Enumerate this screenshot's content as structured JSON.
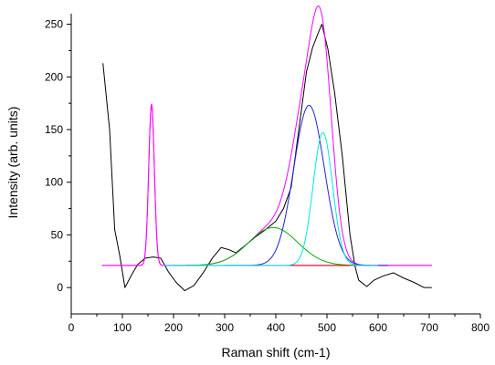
{
  "chart_data": {
    "type": "line",
    "title": "",
    "xlabel": "Raman shift (cm-1)",
    "ylabel": "Intensity (arb. units)",
    "xlim": [
      0,
      800
    ],
    "ylim": [
      -25,
      260
    ],
    "x_ticks": [
      0,
      100,
      200,
      300,
      400,
      500,
      600,
      700,
      800
    ],
    "y_ticks": [
      0,
      50,
      100,
      150,
      200,
      250
    ],
    "grid": false,
    "legend": "none",
    "baseline": 21,
    "series": [
      {
        "id": "measured",
        "color": "#000000",
        "points": [
          [
            62,
            213
          ],
          [
            75,
            150
          ],
          [
            85,
            55
          ],
          [
            95,
            30
          ],
          [
            105,
            0
          ],
          [
            118,
            12
          ],
          [
            130,
            22
          ],
          [
            145,
            28
          ],
          [
            160,
            29
          ],
          [
            175,
            28
          ],
          [
            190,
            15
          ],
          [
            205,
            5
          ],
          [
            222,
            -3
          ],
          [
            240,
            2
          ],
          [
            258,
            14
          ],
          [
            276,
            28
          ],
          [
            293,
            38
          ],
          [
            308,
            36
          ],
          [
            322,
            33
          ],
          [
            340,
            40
          ],
          [
            360,
            48
          ],
          [
            380,
            55
          ],
          [
            400,
            63
          ],
          [
            415,
            75
          ],
          [
            430,
            95
          ],
          [
            445,
            150
          ],
          [
            460,
            205
          ],
          [
            472,
            228
          ],
          [
            484,
            243
          ],
          [
            490,
            250
          ],
          [
            502,
            226
          ],
          [
            515,
            185
          ],
          [
            530,
            125
          ],
          [
            545,
            50
          ],
          [
            555,
            20
          ],
          [
            562,
            7
          ],
          [
            578,
            1
          ],
          [
            592,
            7
          ],
          [
            610,
            11
          ],
          [
            630,
            14
          ],
          [
            650,
            9
          ],
          [
            670,
            5
          ],
          [
            690,
            0
          ],
          [
            705,
            0
          ]
        ]
      },
      {
        "id": "fit-envelope",
        "color": "#ff00ff",
        "model": "gaussian-sum",
        "range": [
          60,
          705
        ]
      },
      {
        "id": "peak-157",
        "color": "#ff00ff",
        "model": "gaussian",
        "center": 157,
        "amplitude": 153,
        "sigma": 5.5,
        "range": [
          60,
          705
        ]
      },
      {
        "id": "peak-395",
        "color": "#00b400",
        "model": "gaussian",
        "center": 395,
        "amplitude": 36,
        "sigma": 48,
        "range": [
          200,
          560
        ]
      },
      {
        "id": "peak-465",
        "color": "#2222dd",
        "model": "gaussian",
        "center": 465,
        "amplitude": 152,
        "sigma": 30,
        "range": [
          300,
          620
        ]
      },
      {
        "id": "peak-492",
        "color": "#00e5e5",
        "model": "gaussian",
        "center": 492,
        "amplitude": 126,
        "sigma": 19,
        "range": [
          180,
          600
        ]
      },
      {
        "id": "baseline-segment",
        "color": "#dd0000",
        "model": "line",
        "range": [
          430,
          545
        ]
      }
    ]
  }
}
